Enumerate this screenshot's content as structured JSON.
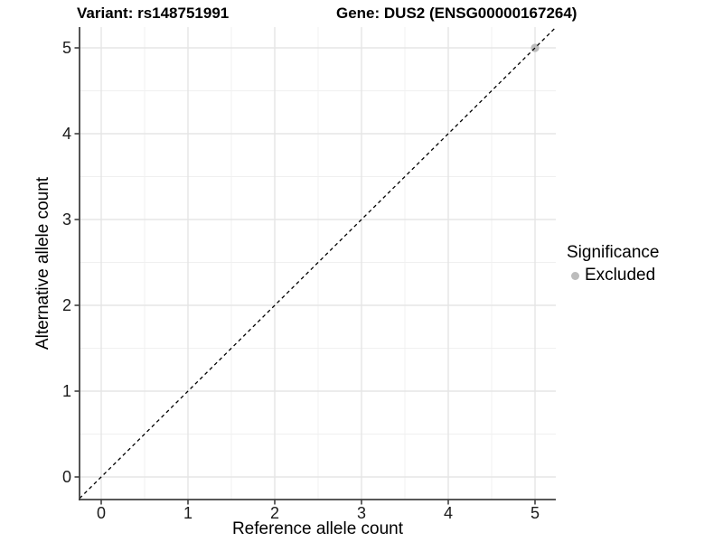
{
  "titles": {
    "variant": "Variant: rs148751991",
    "gene": "Gene: DUS2 (ENSG00000167264)"
  },
  "legend": {
    "title": "Significance",
    "items": [
      {
        "label": "Excluded",
        "color": "#bcbcbc"
      }
    ]
  },
  "chart_data": {
    "type": "scatter",
    "title_left": "Variant: rs148751991",
    "title_right": "Gene: DUS2 (ENSG00000167264)",
    "xlabel": "Reference allele count",
    "ylabel": "Alternative allele count",
    "xlim": [
      -0.25,
      5.24
    ],
    "ylim": [
      -0.26,
      5.24
    ],
    "x_ticks": [
      0,
      1,
      2,
      3,
      4,
      5
    ],
    "y_ticks": [
      0,
      1,
      2,
      3,
      4,
      5
    ],
    "x_tick_labels": [
      "0",
      "1",
      "2",
      "3",
      "4",
      "5"
    ],
    "y_tick_labels": [
      "0",
      "1",
      "2",
      "3",
      "4",
      "5"
    ],
    "x_minor": [
      0.5,
      1.5,
      2.5,
      3.5,
      4.5
    ],
    "y_minor": [
      0.5,
      1.5,
      2.5,
      3.5,
      4.5
    ],
    "grid": "major+minor",
    "legend_position": "right",
    "reference_line": {
      "kind": "identity y=x",
      "style": "dashed",
      "color": "#000000"
    },
    "series": [
      {
        "name": "Excluded",
        "color": "#bcbcbc",
        "points": [
          [
            5,
            5
          ]
        ]
      }
    ],
    "colors": {
      "background": "#ffffff",
      "grid_major": "#e5e5e5",
      "grid_minor": "#f0f0f0",
      "axis_line": "#404040",
      "tick_label": "#1a1a1a",
      "axis_title": "#000000",
      "point": "#bcbcbc",
      "dashed_line": "#000000"
    }
  }
}
